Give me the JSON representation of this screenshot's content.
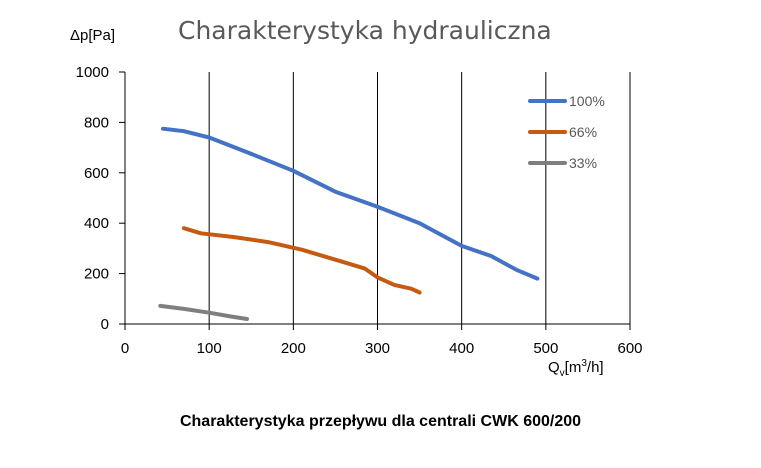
{
  "chart_data": {
    "type": "line",
    "title": "Charakterystyka hydrauliczna",
    "ylabel": "Δp[Pa]",
    "xlabel": {
      "main": "Q",
      "sub": "v",
      "pre": "[m",
      "sup": "3",
      "post": "/h]"
    },
    "xlim": [
      0,
      600
    ],
    "ylim": [
      0,
      1000
    ],
    "xticks": [
      "0",
      "100",
      "200",
      "300",
      "400",
      "500",
      "600"
    ],
    "yticks": [
      "0",
      "200",
      "400",
      "600",
      "800",
      "1000"
    ],
    "grid": "vertical",
    "legend": "top-right",
    "series": [
      {
        "name": "100%",
        "color": "#4472C4",
        "x": [
          45,
          70,
          100,
          150,
          200,
          250,
          300,
          350,
          400,
          435,
          465,
          490
        ],
        "y": [
          775,
          765,
          740,
          675,
          608,
          525,
          465,
          400,
          310,
          270,
          215,
          180
        ]
      },
      {
        "name": "66%",
        "color": "#C55A11",
        "x": [
          70,
          90,
          130,
          170,
          210,
          250,
          285,
          300,
          320,
          340,
          350
        ],
        "y": [
          380,
          360,
          345,
          325,
          295,
          255,
          220,
          185,
          155,
          140,
          125
        ]
      },
      {
        "name": "33%",
        "color": "#7F7F7F",
        "x": [
          42,
          70,
          100,
          125,
          145
        ],
        "y": [
          72,
          60,
          45,
          30,
          20
        ]
      }
    ]
  },
  "caption": "Charakterystyka  przepływu dla centrali CWK 600/200"
}
